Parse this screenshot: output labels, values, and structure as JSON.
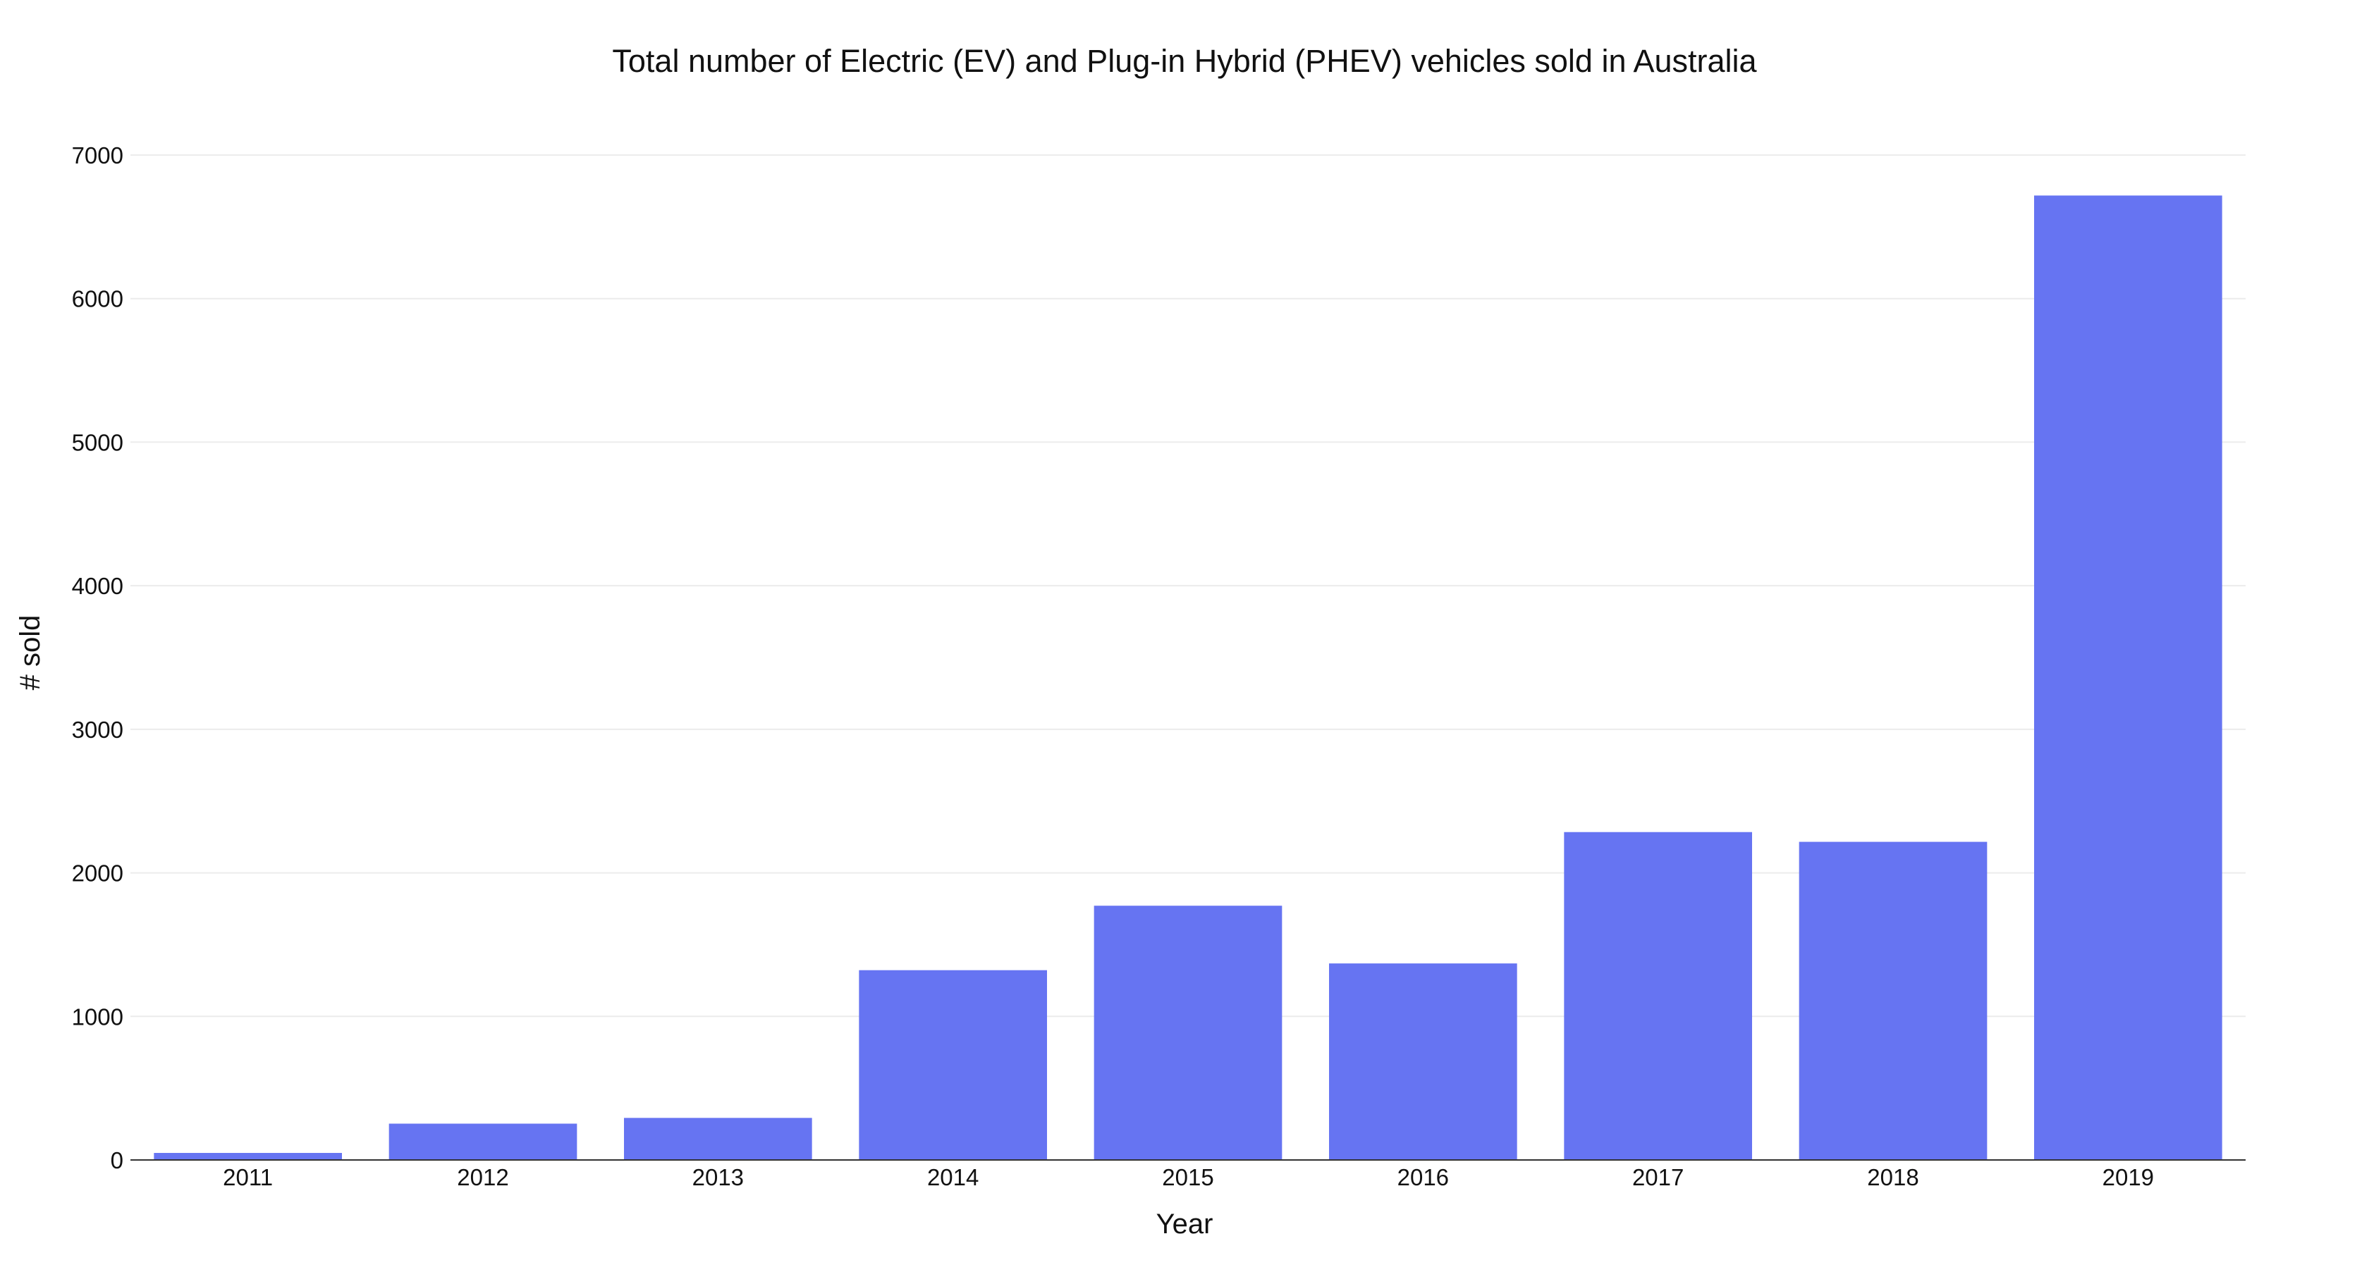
{
  "chart_data": {
    "type": "bar",
    "title": "Total number of Electric (EV) and Plug-in Hybrid (PHEV) vehicles sold in Australia",
    "xlabel": "Year",
    "ylabel": "# sold",
    "categories": [
      "2011",
      "2012",
      "2013",
      "2014",
      "2015",
      "2016",
      "2017",
      "2018",
      "2019"
    ],
    "values": [
      49,
      253,
      293,
      1322,
      1771,
      1369,
      2284,
      2216,
      6718
    ],
    "ylim": [
      0,
      7000
    ],
    "yticks": [
      0,
      1000,
      2000,
      3000,
      4000,
      5000,
      6000,
      7000
    ],
    "grid": true,
    "legend": "none",
    "bar_color": "#6674f2"
  }
}
